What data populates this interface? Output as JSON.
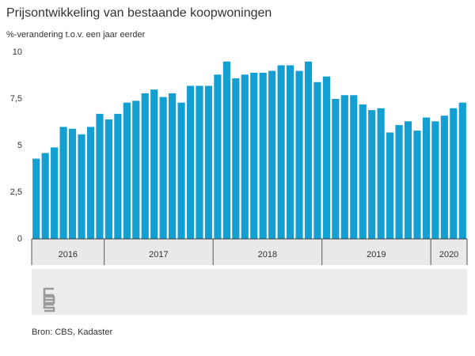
{
  "chart_data": {
    "type": "bar",
    "title": "Prijsontwikkeling van bestaande koopwoningen",
    "subtitle": "%-verandering t.o.v. een jaar eerder",
    "source": "Bron: CBS, Kadaster",
    "color": "#139fd2",
    "categories": [
      "2016",
      "2016",
      "2016",
      "2016",
      "2016",
      "2016",
      "2016",
      "2016",
      "2017",
      "2017",
      "2017",
      "2017",
      "2017",
      "2017",
      "2017",
      "2017",
      "2017",
      "2017",
      "2017",
      "2017",
      "2018",
      "2018",
      "2018",
      "2018",
      "2018",
      "2018",
      "2018",
      "2018",
      "2018",
      "2018",
      "2018",
      "2018",
      "2019",
      "2019",
      "2019",
      "2019",
      "2019",
      "2019",
      "2019",
      "2019",
      "2019",
      "2019",
      "2019",
      "2019",
      "2020",
      "2020",
      "2020",
      "2020"
    ],
    "values": [
      4.3,
      4.6,
      4.9,
      6.0,
      5.9,
      5.6,
      6.0,
      6.7,
      6.4,
      6.7,
      7.3,
      7.4,
      7.8,
      8.0,
      7.6,
      7.8,
      7.3,
      8.2,
      8.2,
      8.2,
      8.8,
      9.5,
      8.6,
      8.8,
      8.9,
      8.9,
      9.0,
      9.3,
      9.3,
      9.0,
      9.5,
      8.4,
      8.7,
      7.5,
      7.7,
      7.7,
      7.2,
      6.9,
      7.0,
      5.7,
      6.1,
      6.3,
      5.8,
      6.5,
      6.3,
      6.6,
      7.0,
      7.3
    ],
    "ylim": [
      0,
      10
    ],
    "yticks": [
      0,
      {
        "value": 2.5,
        "label": "2,5"
      },
      5,
      {
        "value": 7.5,
        "label": "7,5"
      },
      10
    ],
    "grid": false
  }
}
